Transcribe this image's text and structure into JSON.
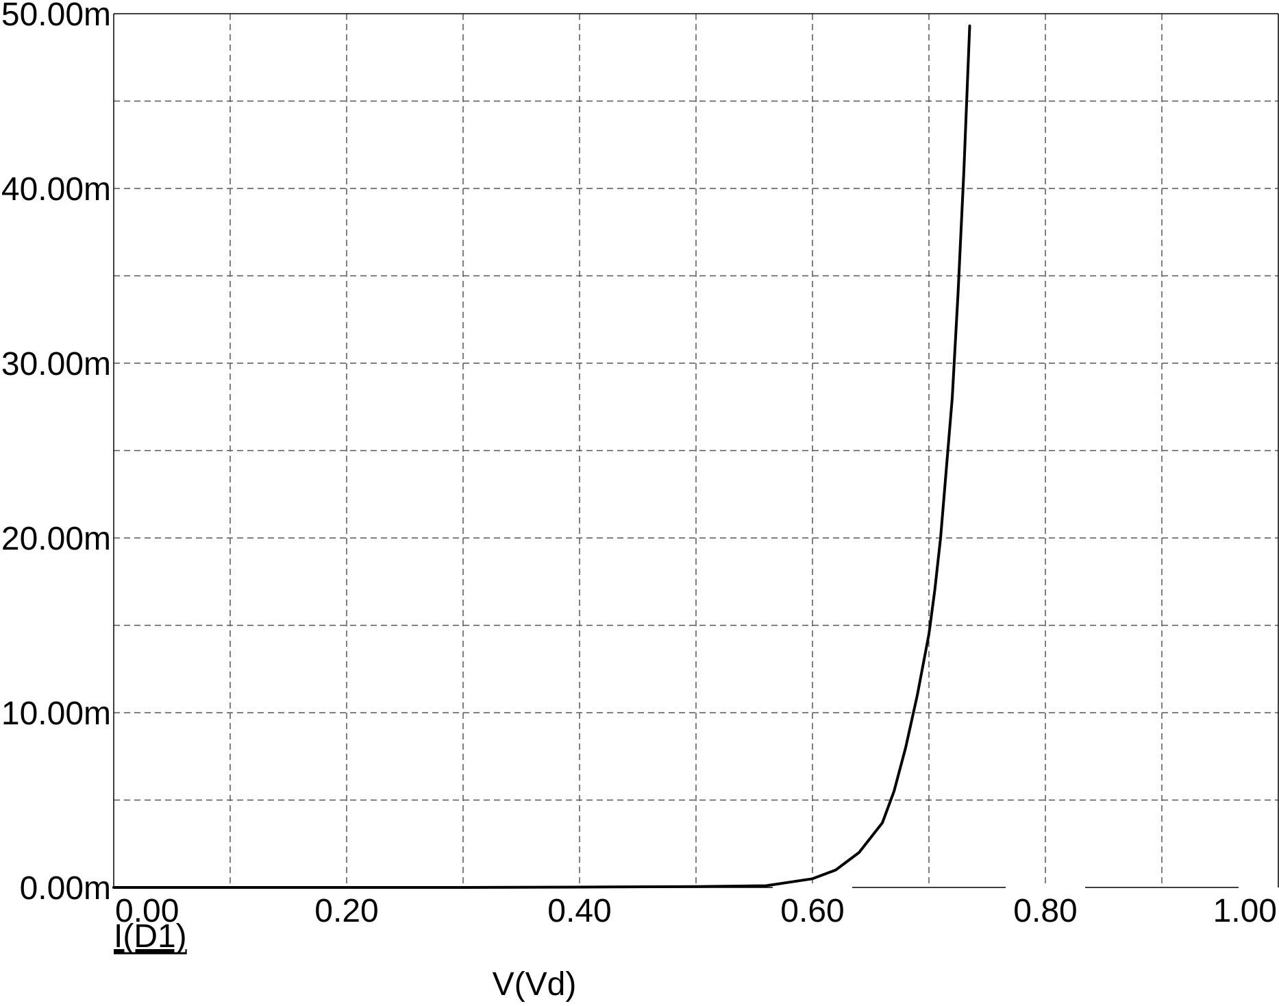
{
  "chart_data": {
    "type": "line",
    "title": "",
    "xlabel": "V(Vd)",
    "ylabel": "",
    "xlim": [
      0,
      1.0
    ],
    "ylim": [
      0,
      50
    ],
    "grid": true,
    "grid_style": "dashed",
    "x_ticks": [
      {
        "value": 0.0,
        "label": "0.00"
      },
      {
        "value": 0.2,
        "label": "0.20"
      },
      {
        "value": 0.4,
        "label": "0.40"
      },
      {
        "value": 0.6,
        "label": "0.60"
      },
      {
        "value": 0.8,
        "label": "0.80"
      },
      {
        "value": 1.0,
        "label": "1.00"
      }
    ],
    "x_minor_ticks": [
      0.1,
      0.3,
      0.5,
      0.7,
      0.9
    ],
    "y_ticks": [
      {
        "value": 0,
        "label": "0.00m"
      },
      {
        "value": 10,
        "label": "10.00m"
      },
      {
        "value": 20,
        "label": "20.00m"
      },
      {
        "value": 30,
        "label": "30.00m"
      },
      {
        "value": 40,
        "label": "40.00m"
      },
      {
        "value": 50,
        "label": "50.00m"
      }
    ],
    "y_minor_ticks": [
      5,
      15,
      25,
      35,
      45
    ],
    "series": [
      {
        "name": "I(D1)",
        "color": "#000000",
        "x": [
          0.0,
          0.1,
          0.2,
          0.3,
          0.4,
          0.5,
          0.56,
          0.6,
          0.62,
          0.64,
          0.66,
          0.67,
          0.68,
          0.69,
          0.7,
          0.705,
          0.71,
          0.715,
          0.72,
          0.725,
          0.73,
          0.735
        ],
        "y": [
          0,
          0,
          0,
          0,
          0.02,
          0.05,
          0.1,
          0.5,
          1.0,
          2.0,
          3.7,
          5.5,
          8.0,
          11.0,
          14.5,
          17.0,
          20.0,
          24.0,
          28.0,
          34.0,
          41.0,
          49.3
        ]
      }
    ]
  }
}
